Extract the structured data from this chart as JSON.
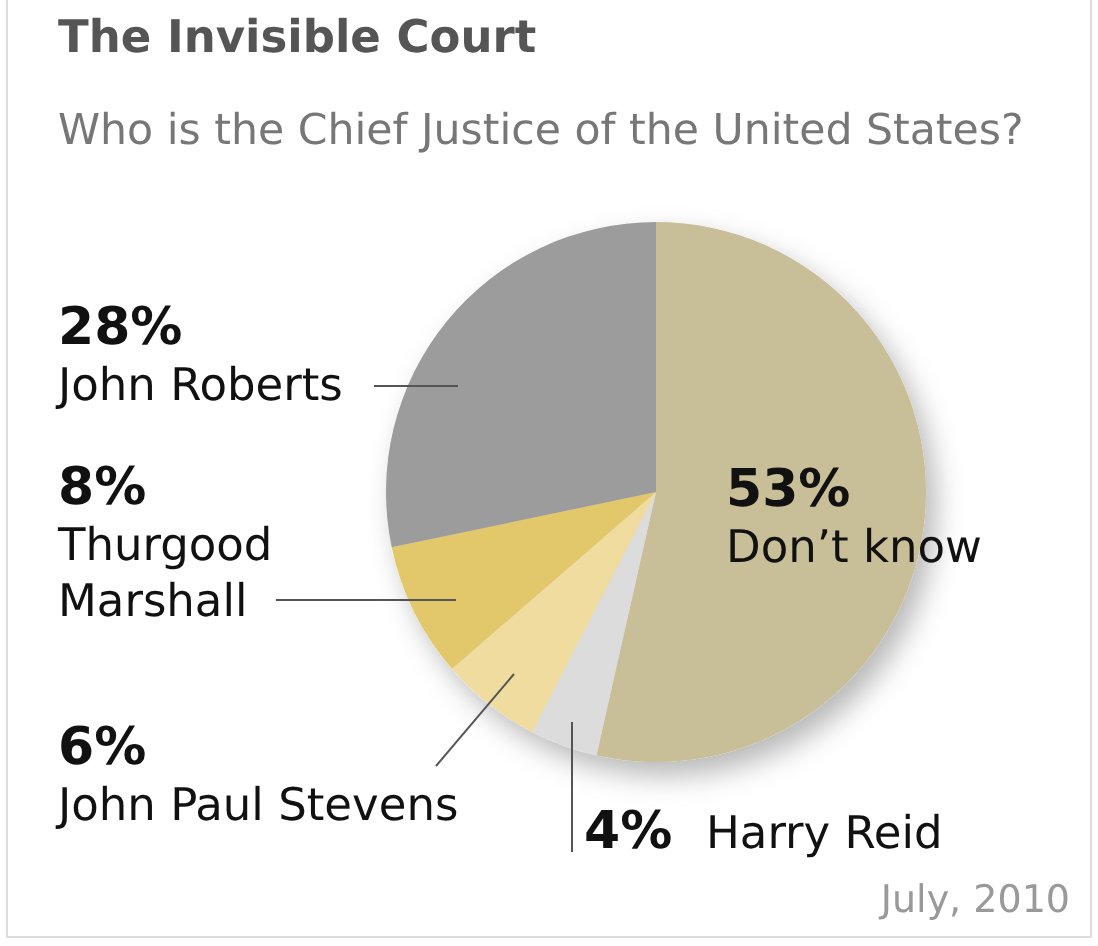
{
  "chart_data": {
    "type": "pie",
    "title": "The Invisible Court",
    "subtitle": "Who is the Chief Justice of the United States?",
    "categories": [
      "Don’t know",
      "Harry Reid",
      "John Paul Stevens",
      "Thurgood Marshall",
      "John Roberts"
    ],
    "values": [
      53,
      4,
      6,
      8,
      28
    ],
    "colors": [
      "#c8be98",
      "#dcdcdc",
      "#efdc9e",
      "#e2c86a",
      "#9c9c9c"
    ],
    "value_labels": [
      "53%",
      "4%",
      "6%",
      "8%",
      "28%"
    ],
    "annotations": [
      "July, 2010"
    ]
  }
}
